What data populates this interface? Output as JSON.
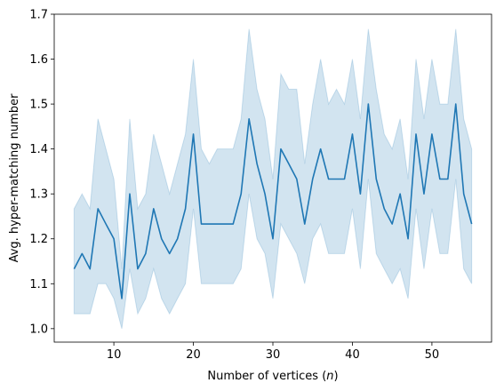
{
  "chart_data": {
    "type": "line",
    "title": "",
    "xlabel": "Number of vertices (",
    "xlabel_var": "n",
    "xlabel_close": ")",
    "ylabel": "Avg. hyper-matching number",
    "xlim": [
      2.5,
      57.5
    ],
    "ylim": [
      0.97,
      1.7
    ],
    "xticks": [
      10,
      20,
      30,
      40,
      50
    ],
    "xtick_labels": [
      "10",
      "20",
      "30",
      "40",
      "50"
    ],
    "yticks": [
      1.0,
      1.1,
      1.2,
      1.3,
      1.4,
      1.5,
      1.6,
      1.7
    ],
    "ytick_labels": [
      "1.0",
      "1.1",
      "1.2",
      "1.3",
      "1.4",
      "1.5",
      "1.6",
      "1.7"
    ],
    "grid": false,
    "colors": {
      "line": "#1f77b4",
      "band": "#1f77b4"
    },
    "series": [
      {
        "x": [
          5,
          6,
          7,
          8,
          9,
          10,
          11,
          12,
          13,
          14,
          15,
          16,
          17,
          18,
          19,
          20,
          21,
          22,
          23,
          24,
          25,
          26,
          27,
          28,
          29,
          30,
          31,
          32,
          33,
          34,
          35,
          36,
          37,
          38,
          39,
          40,
          41,
          42,
          43,
          44,
          45,
          46,
          47,
          48,
          49,
          50,
          51,
          52,
          53,
          54,
          55
        ],
        "values": [
          1.133,
          1.167,
          1.133,
          1.267,
          1.233,
          1.2,
          1.067,
          1.3,
          1.133,
          1.167,
          1.267,
          1.2,
          1.167,
          1.2,
          1.267,
          1.433,
          1.233,
          1.233,
          1.233,
          1.233,
          1.233,
          1.3,
          1.467,
          1.367,
          1.3,
          1.2,
          1.4,
          1.367,
          1.333,
          1.233,
          1.333,
          1.4,
          1.333,
          1.333,
          1.333,
          1.433,
          1.3,
          1.5,
          1.333,
          1.267,
          1.233,
          1.3,
          1.2,
          1.433,
          1.3,
          1.433,
          1.333,
          1.333,
          1.5,
          1.3,
          1.233
        ],
        "lower": [
          1.033,
          1.033,
          1.033,
          1.1,
          1.1,
          1.067,
          1.0,
          1.133,
          1.033,
          1.067,
          1.133,
          1.067,
          1.033,
          1.067,
          1.1,
          1.267,
          1.1,
          1.1,
          1.1,
          1.1,
          1.1,
          1.133,
          1.3,
          1.2,
          1.167,
          1.067,
          1.233,
          1.2,
          1.167,
          1.1,
          1.2,
          1.233,
          1.167,
          1.167,
          1.167,
          1.267,
          1.133,
          1.333,
          1.167,
          1.133,
          1.1,
          1.133,
          1.067,
          1.267,
          1.133,
          1.267,
          1.167,
          1.167,
          1.333,
          1.133,
          1.1
        ],
        "upper": [
          1.267,
          1.3,
          1.267,
          1.467,
          1.4,
          1.333,
          1.133,
          1.467,
          1.267,
          1.3,
          1.433,
          1.367,
          1.3,
          1.367,
          1.433,
          1.6,
          1.4,
          1.367,
          1.4,
          1.4,
          1.4,
          1.467,
          1.667,
          1.533,
          1.467,
          1.333,
          1.567,
          1.533,
          1.533,
          1.367,
          1.5,
          1.6,
          1.5,
          1.533,
          1.5,
          1.6,
          1.467,
          1.667,
          1.533,
          1.433,
          1.4,
          1.467,
          1.333,
          1.6,
          1.467,
          1.6,
          1.5,
          1.5,
          1.667,
          1.467,
          1.4
        ]
      }
    ]
  }
}
